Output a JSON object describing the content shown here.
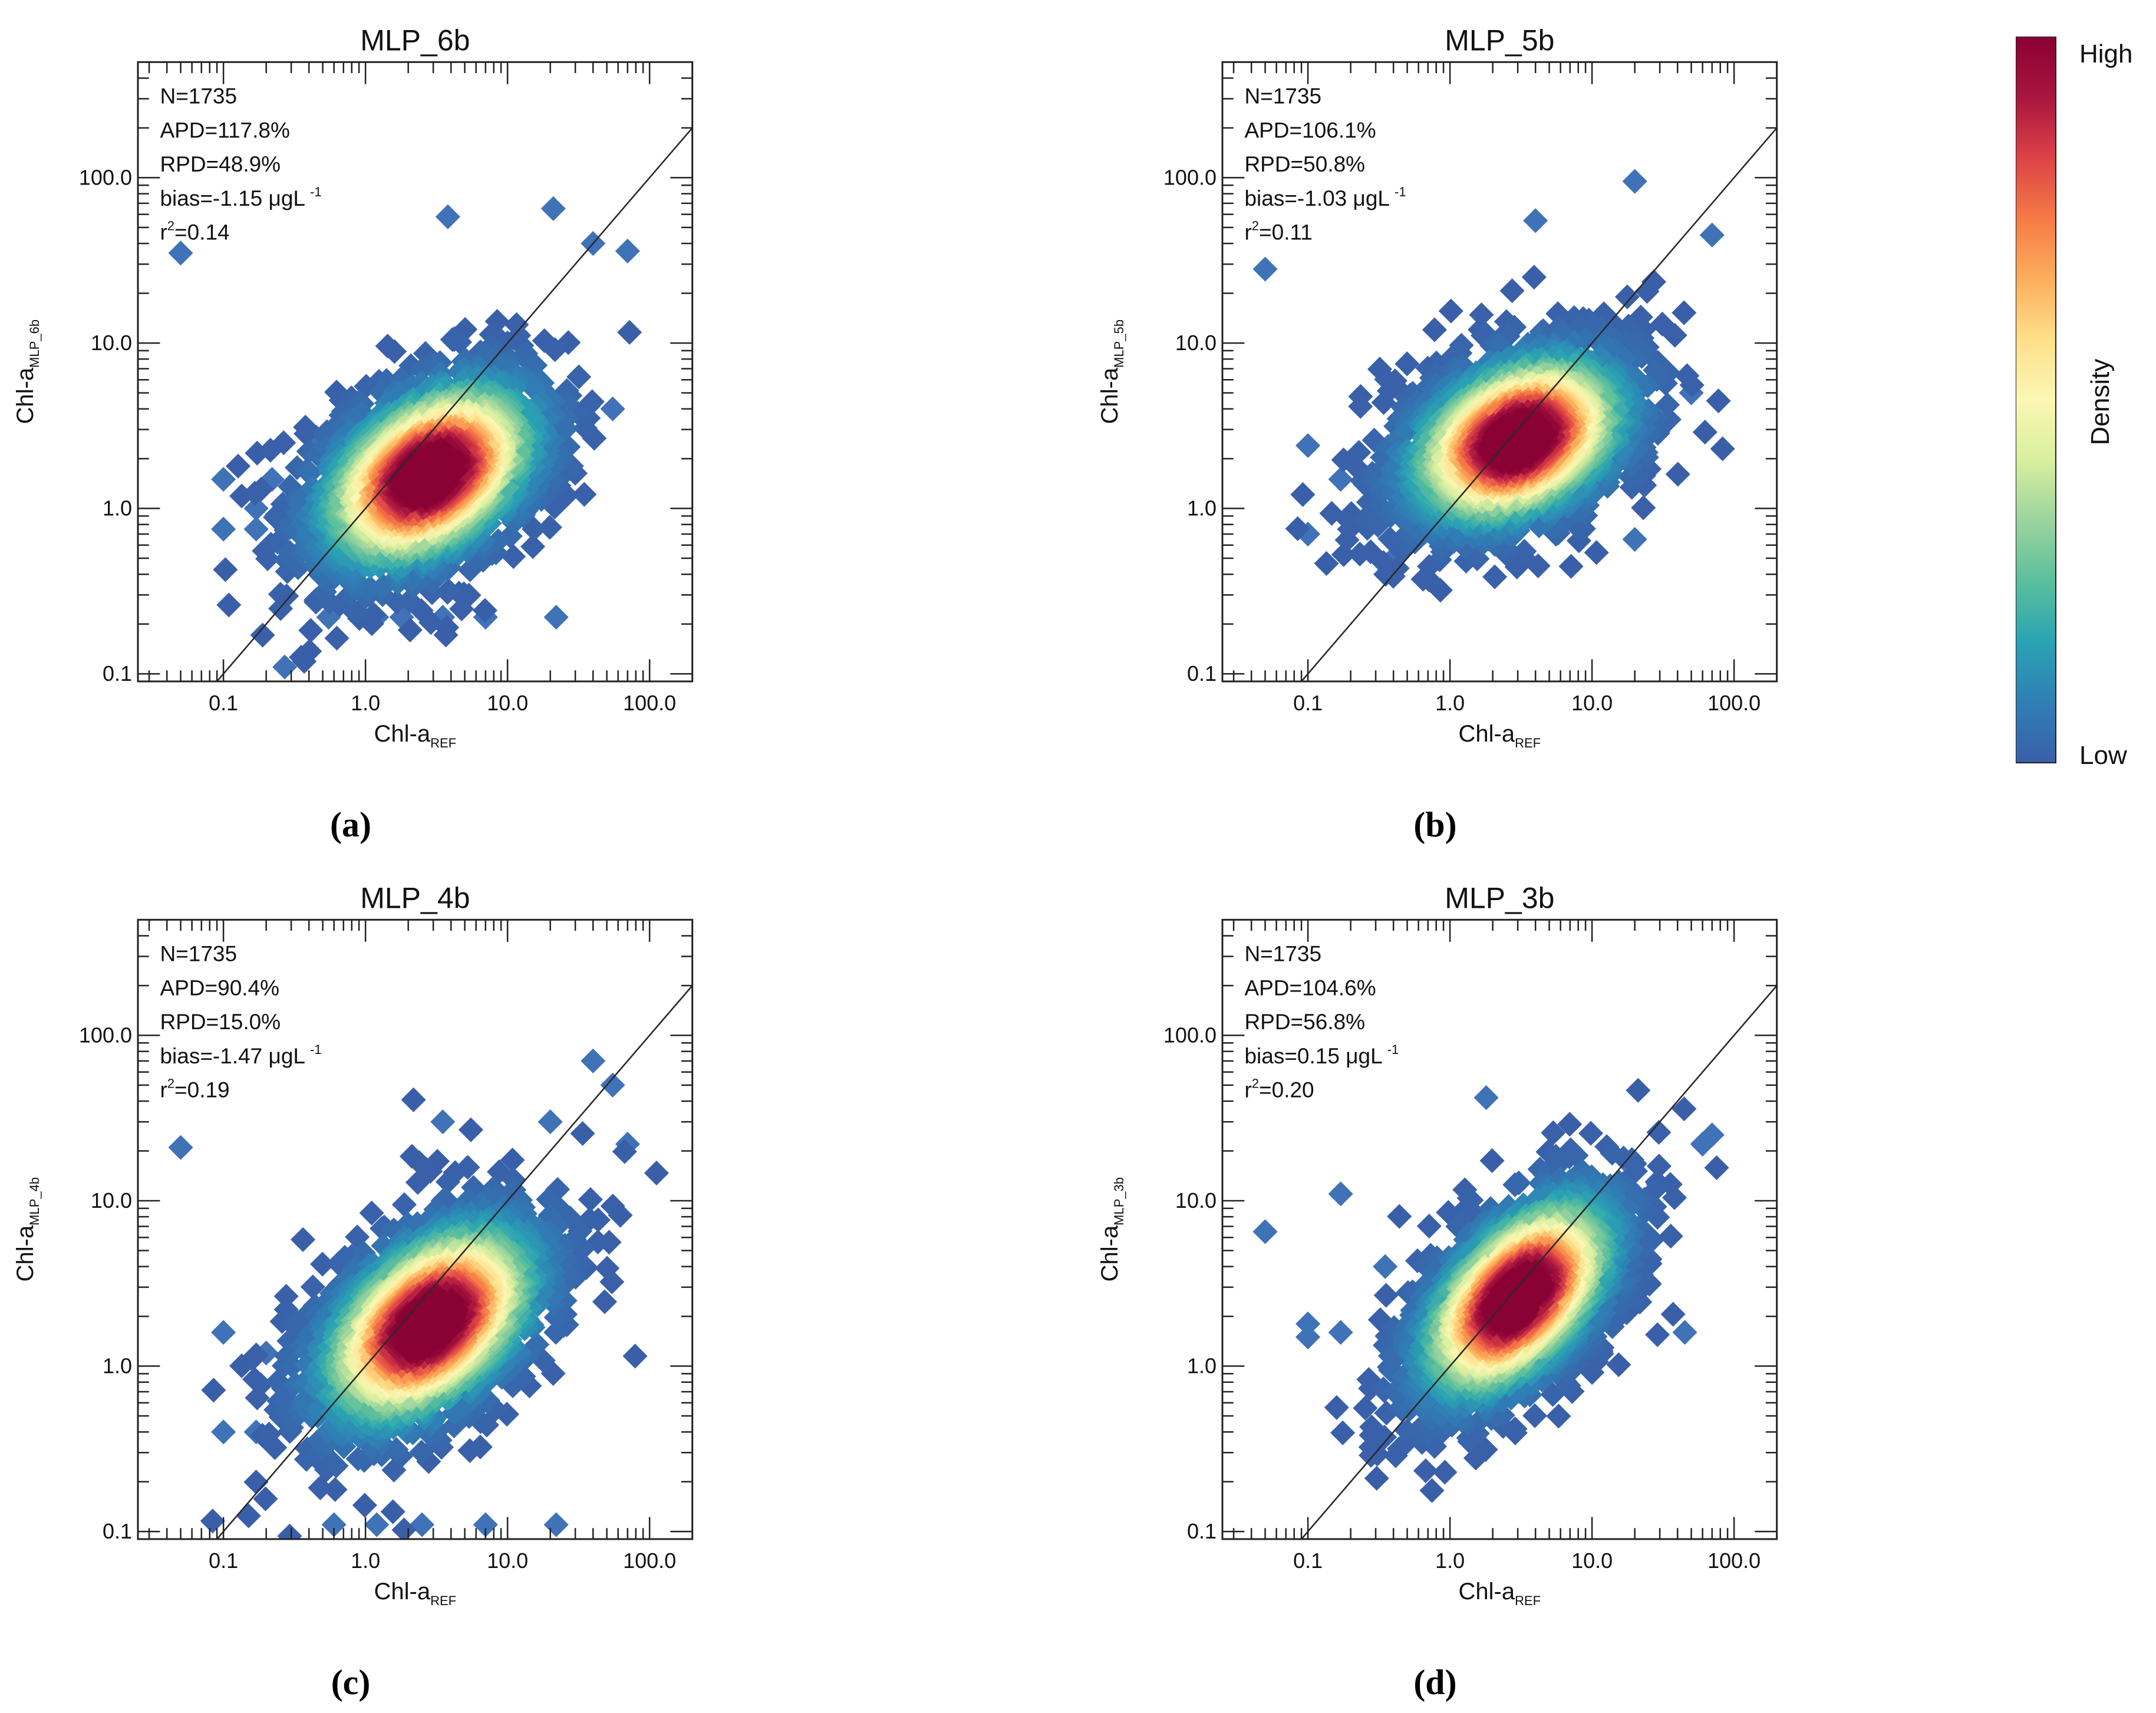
{
  "figure": {
    "colorbar": {
      "title": "Density",
      "high_label": "High",
      "low_label": "Low",
      "colors": [
        "#3a5fa9",
        "#2f7fb5",
        "#2aa3b3",
        "#5bbf9c",
        "#9bd49e",
        "#d8ef9e",
        "#fbf7b4",
        "#fedf8a",
        "#fcae5c",
        "#f57a45",
        "#dd4247",
        "#a8153f",
        "#8a0134"
      ]
    },
    "marker_color": "#3f72b6",
    "line_color": "#2a2a2a"
  },
  "chart_data": [
    {
      "type": "scatter",
      "panel_label": "(a)",
      "title": "MLP_6b",
      "xlabel": "Chl-a",
      "xlabel_sub": "REF",
      "ylabel": "Chl-a",
      "ylabel_sub": "MLP_6b",
      "axis_scale": "log",
      "xlim": [
        0.025,
        200
      ],
      "ylim": [
        0.09,
        500
      ],
      "xticks": [
        0.1,
        1,
        10,
        100
      ],
      "xtick_labels": [
        "0.1",
        "1.0",
        "10.0",
        "100.0"
      ],
      "yticks": [
        0.1,
        1,
        10,
        100
      ],
      "ytick_labels": [
        "0.1",
        "1.0",
        "10.0",
        "100.0"
      ],
      "reference_line": "1:1",
      "stats": {
        "n": "N=1735",
        "apd": "APD=117.8%",
        "rpd": "RPD=48.9%",
        "bias": "bias=-1.15 μgL",
        "bias_exp": "-1",
        "r2_prefix": "r",
        "r2_exp": "2",
        "r2_value": "=0.14"
      },
      "density_center": [
        2.8,
        1.6
      ],
      "spread": [
        0.45,
        0.33
      ],
      "correlation": 0.42,
      "outliers": [
        [
          0.05,
          35
        ],
        [
          0.27,
          0.11
        ],
        [
          0.55,
          0.22
        ],
        [
          1.2,
          0.22
        ],
        [
          1.8,
          0.22
        ],
        [
          3.5,
          0.22
        ],
        [
          7,
          0.22
        ],
        [
          22,
          0.22
        ],
        [
          21,
          65
        ],
        [
          3.8,
          58
        ],
        [
          70,
          36
        ],
        [
          0.1,
          1.5
        ],
        [
          0.1,
          0.75
        ],
        [
          0.17,
          0.75
        ],
        [
          0.17,
          1
        ],
        [
          0.22,
          1.5
        ],
        [
          0.45,
          2.7
        ],
        [
          40,
          40
        ],
        [
          55,
          4
        ]
      ]
    },
    {
      "type": "scatter",
      "panel_label": "(b)",
      "title": "MLP_5b",
      "xlabel": "Chl-a",
      "xlabel_sub": "REF",
      "ylabel": "Chl-a",
      "ylabel_sub": "MLP_5b",
      "axis_scale": "log",
      "xlim": [
        0.025,
        200
      ],
      "ylim": [
        0.09,
        500
      ],
      "xticks": [
        0.1,
        1,
        10,
        100
      ],
      "xtick_labels": [
        "0.1",
        "1.0",
        "10.0",
        "100.0"
      ],
      "yticks": [
        0.1,
        1,
        10,
        100
      ],
      "ytick_labels": [
        "0.1",
        "1.0",
        "10.0",
        "100.0"
      ],
      "reference_line": "1:1",
      "stats": {
        "n": "N=1735",
        "apd": "APD=106.1%",
        "rpd": "RPD=50.8%",
        "bias": "bias=-1.03 μgL",
        "bias_exp": "-1",
        "r2_prefix": "r",
        "r2_exp": "2",
        "r2_value": "=0.11"
      },
      "density_center": [
        3.0,
        2.6
      ],
      "spread": [
        0.45,
        0.3
      ],
      "correlation": 0.35,
      "outliers": [
        [
          0.05,
          28
        ],
        [
          0.1,
          2.4
        ],
        [
          0.1,
          0.7
        ],
        [
          0.17,
          1.5
        ],
        [
          20,
          95
        ],
        [
          70,
          45
        ],
        [
          20,
          0.65
        ],
        [
          4,
          55
        ],
        [
          1,
          0.65
        ],
        [
          0.4,
          0.5
        ],
        [
          50,
          5
        ]
      ]
    },
    {
      "type": "scatter",
      "panel_label": "(c)",
      "title": "MLP_4b",
      "xlabel": "Chl-a",
      "xlabel_sub": "REF",
      "ylabel": "Chl-a",
      "ylabel_sub": "MLP_4b",
      "axis_scale": "log",
      "xlim": [
        0.025,
        200
      ],
      "ylim": [
        0.09,
        500
      ],
      "xticks": [
        0.1,
        1,
        10,
        100
      ],
      "xtick_labels": [
        "0.1",
        "1.0",
        "10.0",
        "100.0"
      ],
      "yticks": [
        0.1,
        1,
        10,
        100
      ],
      "ytick_labels": [
        "0.1",
        "1.0",
        "10.0",
        "100.0"
      ],
      "reference_line": "1:1",
      "stats": {
        "n": "N=1735",
        "apd": "APD=90.4%",
        "rpd": "RPD=15.0%",
        "bias": "bias=-1.47 μgL",
        "bias_exp": "-1",
        "r2_prefix": "r",
        "r2_exp": "2",
        "r2_value": "=0.19"
      },
      "density_center": [
        2.8,
        1.8
      ],
      "spread": [
        0.45,
        0.36
      ],
      "correlation": 0.48,
      "outliers": [
        [
          0.05,
          21
        ],
        [
          0.1,
          1.6
        ],
        [
          0.1,
          0.4
        ],
        [
          0.17,
          0.4
        ],
        [
          0.6,
          0.11
        ],
        [
          1.2,
          0.11
        ],
        [
          2.5,
          0.11
        ],
        [
          7,
          0.11
        ],
        [
          22,
          0.11
        ],
        [
          40,
          70
        ],
        [
          55,
          50
        ],
        [
          70,
          22
        ],
        [
          0.2,
          1.2
        ],
        [
          20,
          30
        ],
        [
          3.5,
          30
        ]
      ]
    },
    {
      "type": "scatter",
      "panel_label": "(d)",
      "title": "MLP_3b",
      "xlabel": "Chl-a",
      "xlabel_sub": "REF",
      "ylabel": "Chl-a",
      "ylabel_sub": "MLP_3b",
      "axis_scale": "log",
      "xlim": [
        0.025,
        200
      ],
      "ylim": [
        0.09,
        500
      ],
      "xticks": [
        0.1,
        1,
        10,
        100
      ],
      "xtick_labels": [
        "0.1",
        "1.0",
        "10.0",
        "100.0"
      ],
      "yticks": [
        0.1,
        1,
        10,
        100
      ],
      "ytick_labels": [
        "0.1",
        "1.0",
        "10.0",
        "100.0"
      ],
      "reference_line": "1:1",
      "stats": {
        "n": "N=1735",
        "apd": "APD=104.6%",
        "rpd": "RPD=56.8%",
        "bias": "bias=0.15 μgL",
        "bias_exp": "-1",
        "r2_prefix": "r",
        "r2_exp": "2",
        "r2_value": "=0.20"
      },
      "density_center": [
        3.0,
        2.6
      ],
      "spread": [
        0.4,
        0.36
      ],
      "correlation": 0.55,
      "outliers": [
        [
          0.05,
          6.5
        ],
        [
          0.1,
          1.8
        ],
        [
          0.1,
          1.5
        ],
        [
          0.17,
          1.6
        ],
        [
          0.17,
          11
        ],
        [
          1.8,
          42
        ],
        [
          70,
          25
        ],
        [
          60,
          22
        ],
        [
          45,
          1.6
        ],
        [
          0.35,
          4
        ]
      ]
    }
  ]
}
